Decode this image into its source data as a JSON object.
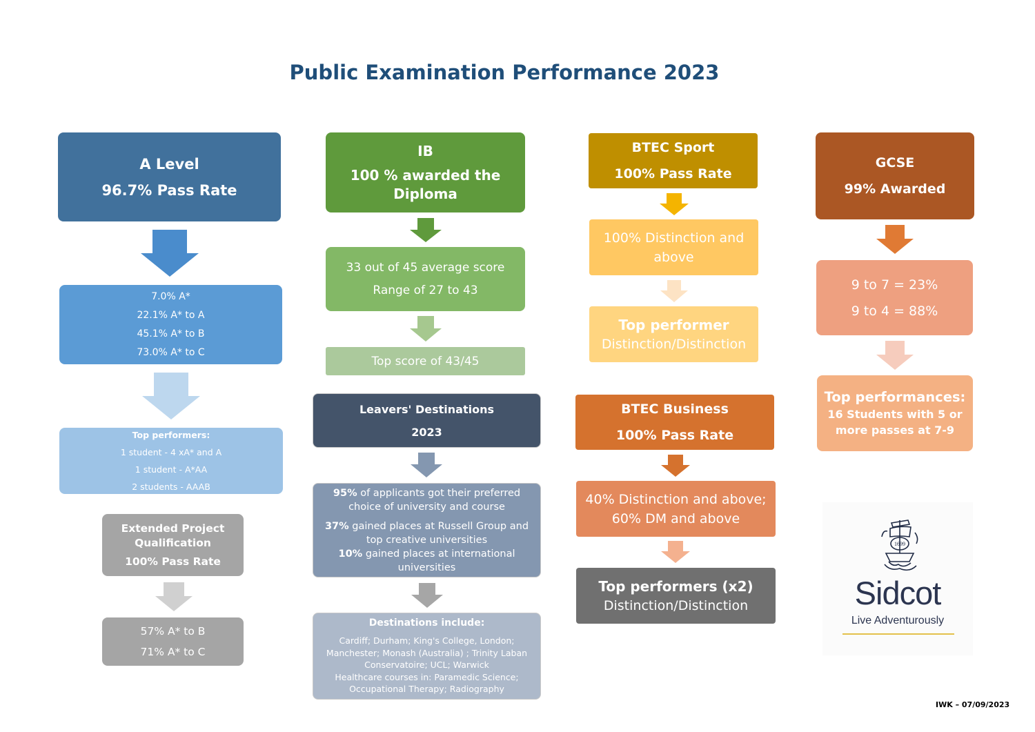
{
  "title": "Public Examination Performance 2023",
  "colors": {
    "alevel_dark": "#41719c",
    "alevel_mid": "#5b9bd5",
    "alevel_light": "#9dc3e6",
    "ib_dark": "#5f9a3c",
    "ib_mid": "#83b866",
    "ib_light": "#abc99c",
    "sport_dark": "#bf8f00",
    "sport_mid": "#ffc862",
    "sport_light": "#ffd580",
    "gcse_dark": "#ab5724",
    "gcse_mid": "#eea080",
    "gcse_light": "#f4b183",
    "leavers_dark": "#44546a",
    "leavers_mid": "#8497b0",
    "leavers_light": "#adb9ca",
    "business_dark": "#d5722e",
    "business_mid": "#e3895c",
    "business_grey": "#707070",
    "epq_grey": "#a5a5a5"
  },
  "alevel": {
    "head": [
      "A Level",
      "96.7% Pass Rate"
    ],
    "grades": [
      "7.0% A*",
      "22.1% A* to A",
      "45.1% A* to B",
      "73.0% A* to C"
    ],
    "top_heading": "Top performers:",
    "top": [
      "1 student - 4 xA* and A",
      "1 student - A*AA",
      "2 students - AAAB"
    ]
  },
  "epq": {
    "head": [
      "Extended Project Qualification",
      "100% Pass Rate"
    ],
    "results": [
      "57% A* to B",
      "71% A* to C"
    ]
  },
  "ib": {
    "head": [
      "IB",
      "100 % awarded the Diploma"
    ],
    "score": [
      "33 out of 45 average score",
      "Range of 27 to 43"
    ],
    "top": "Top score of 43/45"
  },
  "leavers": {
    "head": [
      "Leavers' Destinations",
      "2023"
    ],
    "stats": [
      {
        "pct": "95%",
        "text": "of applicants got their preferred choice of university and course"
      },
      {
        "pct": "37%",
        "text": "gained places at Russell Group and top creative universities"
      },
      {
        "pct": "10%",
        "text": "gained places at international universities"
      }
    ],
    "dest_heading": "Destinations include:",
    "dest_text": "Cardiff; Durham; King's College, London; Manchester; Monash (Australia) ; Trinity Laban Conservatoire; UCL; Warwick",
    "dest_text2": "Healthcare courses in: Paramedic Science; Occupational Therapy; Radiography"
  },
  "sport": {
    "head": [
      "BTEC Sport",
      "100% Pass Rate"
    ],
    "dist": "100% Distinction and above",
    "top_heading": "Top performer",
    "top": "Distinction/Distinction"
  },
  "business": {
    "head": [
      "BTEC Business",
      "100% Pass Rate"
    ],
    "dist": "40% Distinction and above; 60% DM and above",
    "top_heading": "Top performers (x2)",
    "top": "Distinction/Distinction"
  },
  "gcse": {
    "head": [
      "GCSE",
      "99% Awarded"
    ],
    "grades": [
      "9 to 7 = 23%",
      "9 to 4 = 88%"
    ],
    "top_heading": "Top performances:",
    "top": "16 Students with 5 or more passes at 7-9"
  },
  "logo": {
    "name": "Sidcot",
    "tagline": "Live Adventurously",
    "year": "1699"
  },
  "footer": "IWK – 07/09/2023"
}
